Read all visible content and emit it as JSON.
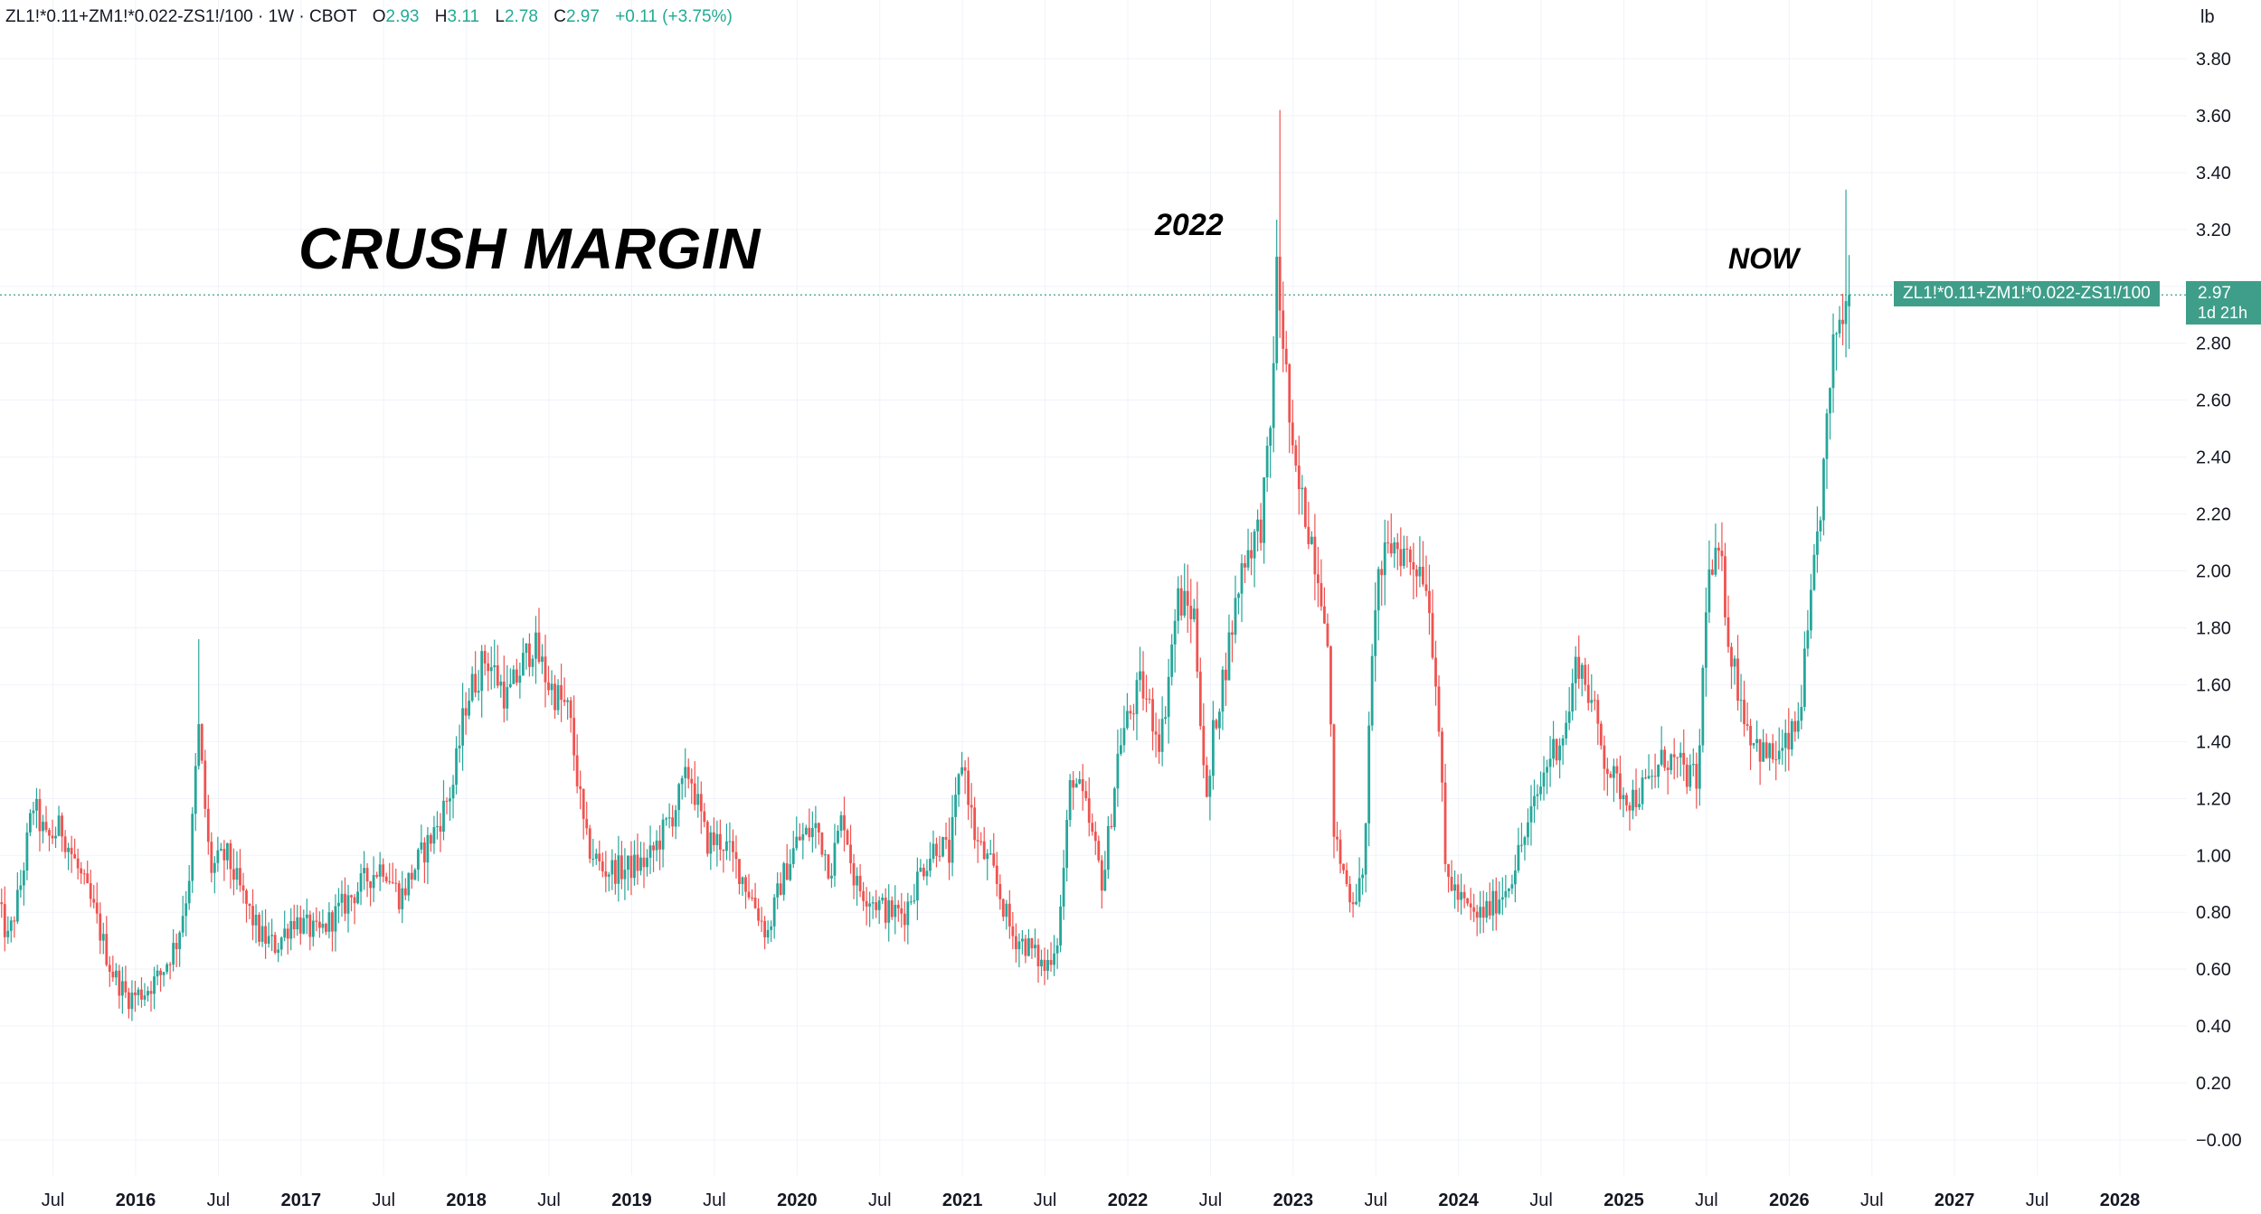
{
  "header": {
    "symbol": "ZL1!*0.11+ZM1!*0.022-ZS1!/100 · 1W · CBOT",
    "open_label": "O",
    "open": "2.93",
    "high_label": "H",
    "high": "3.11",
    "low_label": "L",
    "low": "2.78",
    "close_label": "C",
    "close": "2.97",
    "change": "+0.11 (+3.75%)"
  },
  "unit_label": "lb",
  "annotations": {
    "title": "CRUSH MARGIN",
    "label_2022": "2022",
    "label_now": "NOW"
  },
  "price_tag": {
    "symbol": "ZL1!*0.11+ZM1!*0.022-ZS1!/100",
    "price": "2.97",
    "countdown": "1d 21h"
  },
  "colors": {
    "up": "#26a69a",
    "down": "#ef5350",
    "grid": "#f0f3fa",
    "tag": "#3f9e89"
  },
  "chart_data": {
    "type": "candlestick",
    "timeframe": "1W",
    "title": "CRUSH MARGIN",
    "ylabel": "lb",
    "ylim": [
      -0.1,
      3.92
    ],
    "current_price": 2.97,
    "y_ticks": [
      "3.80",
      "3.60",
      "3.40",
      "3.20",
      "2.80",
      "2.60",
      "2.40",
      "2.20",
      "2.00",
      "1.80",
      "1.60",
      "1.40",
      "1.20",
      "1.00",
      "0.80",
      "0.60",
      "0.40",
      "0.20",
      "−0.00"
    ],
    "x_ticks": [
      {
        "label": "Jul",
        "t": 2015.5,
        "bold": false
      },
      {
        "label": "2016",
        "t": 2016.0,
        "bold": true
      },
      {
        "label": "Jul",
        "t": 2016.5,
        "bold": false
      },
      {
        "label": "2017",
        "t": 2017.0,
        "bold": true
      },
      {
        "label": "Jul",
        "t": 2017.5,
        "bold": false
      },
      {
        "label": "2018",
        "t": 2018.0,
        "bold": true
      },
      {
        "label": "Jul",
        "t": 2018.5,
        "bold": false
      },
      {
        "label": "2019",
        "t": 2019.0,
        "bold": true
      },
      {
        "label": "Jul",
        "t": 2019.5,
        "bold": false
      },
      {
        "label": "2020",
        "t": 2020.0,
        "bold": true
      },
      {
        "label": "Jul",
        "t": 2020.5,
        "bold": false
      },
      {
        "label": "2021",
        "t": 2021.0,
        "bold": true
      },
      {
        "label": "Jul",
        "t": 2021.5,
        "bold": false
      },
      {
        "label": "2022",
        "t": 2022.0,
        "bold": true
      },
      {
        "label": "Jul",
        "t": 2022.5,
        "bold": false
      },
      {
        "label": "2023",
        "t": 2023.0,
        "bold": true
      },
      {
        "label": "Jul",
        "t": 2023.5,
        "bold": false
      },
      {
        "label": "2024",
        "t": 2024.0,
        "bold": true
      },
      {
        "label": "Jul",
        "t": 2024.5,
        "bold": false
      },
      {
        "label": "2025",
        "t": 2025.0,
        "bold": true
      },
      {
        "label": "Jul",
        "t": 2025.5,
        "bold": false
      },
      {
        "label": "2026",
        "t": 2026.0,
        "bold": true
      },
      {
        "label": "Jul",
        "t": 2026.5,
        "bold": false
      },
      {
        "label": "2027",
        "t": 2027.0,
        "bold": true
      },
      {
        "label": "Jul",
        "t": 2027.5,
        "bold": false
      },
      {
        "label": "2028",
        "t": 2028.0,
        "bold": true
      }
    ],
    "x_range": [
      2015.17,
      2028.32
    ],
    "series_anchor_points": [
      [
        2015.17,
        0.82
      ],
      [
        2015.23,
        0.7
      ],
      [
        2015.3,
        0.88
      ],
      [
        2015.38,
        1.18
      ],
      [
        2015.46,
        1.05
      ],
      [
        2015.55,
        1.1
      ],
      [
        2015.65,
        0.95
      ],
      [
        2015.75,
        0.8
      ],
      [
        2015.85,
        0.6
      ],
      [
        2015.95,
        0.5
      ],
      [
        2016.05,
        0.52
      ],
      [
        2016.15,
        0.58
      ],
      [
        2016.25,
        0.7
      ],
      [
        2016.32,
        0.9
      ],
      [
        2016.38,
        1.45
      ],
      [
        2016.45,
        0.95
      ],
      [
        2016.55,
        1.0
      ],
      [
        2016.65,
        0.85
      ],
      [
        2016.75,
        0.72
      ],
      [
        2016.85,
        0.68
      ],
      [
        2016.95,
        0.78
      ],
      [
        2017.1,
        0.72
      ],
      [
        2017.25,
        0.82
      ],
      [
        2017.4,
        0.92
      ],
      [
        2017.5,
        0.97
      ],
      [
        2017.6,
        0.85
      ],
      [
        2017.7,
        0.97
      ],
      [
        2017.82,
        1.1
      ],
      [
        2017.92,
        1.25
      ],
      [
        2018.0,
        1.55
      ],
      [
        2018.12,
        1.7
      ],
      [
        2018.25,
        1.55
      ],
      [
        2018.4,
        1.75
      ],
      [
        2018.5,
        1.6
      ],
      [
        2018.62,
        1.5
      ],
      [
        2018.72,
        1.05
      ],
      [
        2018.82,
        0.95
      ],
      [
        2018.95,
        0.95
      ],
      [
        2019.1,
        0.98
      ],
      [
        2019.25,
        1.15
      ],
      [
        2019.35,
        1.3
      ],
      [
        2019.45,
        1.05
      ],
      [
        2019.55,
        1.05
      ],
      [
        2019.65,
        0.95
      ],
      [
        2019.75,
        0.82
      ],
      [
        2019.82,
        0.72
      ],
      [
        2019.9,
        0.9
      ],
      [
        2020.0,
        1.05
      ],
      [
        2020.12,
        1.1
      ],
      [
        2020.2,
        0.95
      ],
      [
        2020.28,
        1.15
      ],
      [
        2020.35,
        0.9
      ],
      [
        2020.45,
        0.85
      ],
      [
        2020.55,
        0.8
      ],
      [
        2020.65,
        0.8
      ],
      [
        2020.75,
        0.95
      ],
      [
        2020.85,
        1.05
      ],
      [
        2020.92,
        1.0
      ],
      [
        2021.0,
        1.35
      ],
      [
        2021.08,
        1.05
      ],
      [
        2021.18,
        0.95
      ],
      [
        2021.3,
        0.72
      ],
      [
        2021.4,
        0.68
      ],
      [
        2021.5,
        0.6
      ],
      [
        2021.58,
        0.72
      ],
      [
        2021.66,
        1.3
      ],
      [
        2021.75,
        1.15
      ],
      [
        2021.85,
        0.9
      ],
      [
        2021.95,
        1.4
      ],
      [
        2022.08,
        1.6
      ],
      [
        2022.2,
        1.4
      ],
      [
        2022.3,
        1.9
      ],
      [
        2022.4,
        1.85
      ],
      [
        2022.48,
        1.15
      ],
      [
        2022.52,
        1.45
      ],
      [
        2022.6,
        1.7
      ],
      [
        2022.7,
        2.05
      ],
      [
        2022.8,
        2.15
      ],
      [
        2022.86,
        2.45
      ],
      [
        2022.9,
        3.05
      ],
      [
        2022.95,
        2.75
      ],
      [
        2023.0,
        2.35
      ],
      [
        2023.1,
        2.15
      ],
      [
        2023.2,
        1.85
      ],
      [
        2023.25,
        1.05
      ],
      [
        2023.35,
        0.85
      ],
      [
        2023.42,
        0.9
      ],
      [
        2023.5,
        1.95
      ],
      [
        2023.6,
        2.1
      ],
      [
        2023.7,
        2.05
      ],
      [
        2023.8,
        2.0
      ],
      [
        2023.87,
        1.6
      ],
      [
        2023.92,
        0.95
      ],
      [
        2024.0,
        0.85
      ],
      [
        2024.1,
        0.78
      ],
      [
        2024.2,
        0.82
      ],
      [
        2024.3,
        0.9
      ],
      [
        2024.42,
        1.1
      ],
      [
        2024.55,
        1.35
      ],
      [
        2024.65,
        1.45
      ],
      [
        2024.72,
        1.7
      ],
      [
        2024.8,
        1.55
      ],
      [
        2024.88,
        1.35
      ],
      [
        2024.95,
        1.25
      ],
      [
        2025.05,
        1.2
      ],
      [
        2025.15,
        1.25
      ],
      [
        2025.25,
        1.35
      ],
      [
        2025.35,
        1.3
      ],
      [
        2025.45,
        1.25
      ],
      [
        2025.5,
        1.95
      ],
      [
        2025.58,
        2.05
      ],
      [
        2025.65,
        1.7
      ],
      [
        2025.75,
        1.45
      ],
      [
        2025.85,
        1.35
      ],
      [
        2025.95,
        1.35
      ],
      [
        2026.05,
        1.45
      ],
      [
        2026.12,
        1.8
      ],
      [
        2026.2,
        2.3
      ],
      [
        2026.28,
        2.85
      ],
      [
        2026.33,
        2.92
      ],
      [
        2026.37,
        2.97
      ]
    ],
    "notable_spikes": [
      {
        "t": 2016.38,
        "high": 1.76
      },
      {
        "t": 2022.92,
        "high": 3.62
      },
      {
        "t": 2022.88,
        "low": 2.7
      },
      {
        "t": 2026.35,
        "high": 3.34
      }
    ],
    "last_candle": {
      "open": 2.93,
      "high": 3.11,
      "low": 2.78,
      "close": 2.97
    }
  }
}
